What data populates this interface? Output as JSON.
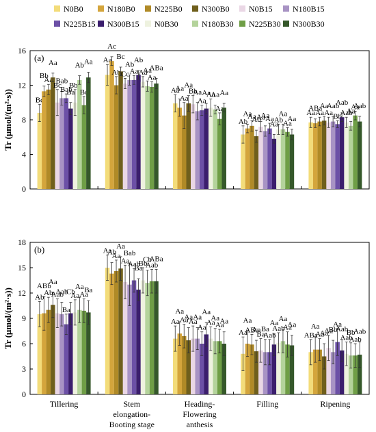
{
  "legend": {
    "placement": "top",
    "items": [
      {
        "label": "N0B0",
        "color": "#f3dc7a"
      },
      {
        "label": "N180B0",
        "color": "#d4a53c"
      },
      {
        "label": "N225B0",
        "color": "#b08a27"
      },
      {
        "label": "N300B0",
        "color": "#6f5f1c"
      },
      {
        "label": "N0B15",
        "color": "#ead7e5"
      },
      {
        "label": "N180B15",
        "color": "#a893c4"
      },
      {
        "label": "N225B15",
        "color": "#6c50a6"
      },
      {
        "label": "N300B15",
        "color": "#3b1e6d"
      },
      {
        "label": "N0B30",
        "color": "#eef2df"
      },
      {
        "label": "N180B30",
        "color": "#b4d39b"
      },
      {
        "label": "N225B30",
        "color": "#6f9e46"
      },
      {
        "label": "N300B30",
        "color": "#35582a"
      }
    ]
  },
  "stages": [
    "Tillering",
    "Stem\nelongation-\nBooting stage",
    "Heading-\nFlowering\nanthesis",
    "Filling",
    "Ripening"
  ],
  "chart_data": [
    {
      "type": "bar",
      "panel_label": "(a)",
      "ylabel": "Tr (μmol/(m²·s))",
      "ylim": [
        0,
        16
      ],
      "yticks": [
        0,
        4,
        8,
        12,
        16
      ],
      "categories": [
        "Tillering",
        "Stem elongation-Booting stage",
        "Heading-Flowering anthesis",
        "Filling",
        "Ripening"
      ],
      "series": [
        {
          "name": "N0B0",
          "values": [
            8.8,
            13.2,
            9.9,
            6.3,
            7.7
          ],
          "errors": [
            1.0,
            1.2,
            1.0,
            1.0,
            0.6
          ],
          "letters": [
            "Bc",
            "Aa",
            "Aa",
            "Ab",
            "Aa"
          ]
        },
        {
          "name": "N180B0",
          "values": [
            11.3,
            14.8,
            9.4,
            7.0,
            7.6
          ],
          "errors": [
            0.6,
            0.5,
            1.0,
            0.5,
            0.5
          ],
          "letters": [
            "Bb",
            "Ac",
            "Aa",
            "Aa",
            "ABa"
          ]
        },
        {
          "name": "N225B0",
          "values": [
            11.5,
            12.0,
            8.5,
            7.3,
            7.8
          ],
          "errors": [
            0.6,
            1.0,
            1.5,
            0.6,
            0.5
          ],
          "letters": [
            "Aa",
            "Ab",
            "Aa",
            "Aa",
            "Aa"
          ]
        },
        {
          "name": "N300B0",
          "values": [
            12.9,
            13.6,
            9.9,
            6.1,
            7.9
          ],
          "errors": [
            0.5,
            0.5,
            0.9,
            0.7,
            0.5
          ],
          "letters": [
            "Aa",
            "Bc",
            "Aa",
            "Ab",
            "Aa"
          ]
        },
        {
          "name": "N0B15",
          "values": [
            10.0,
            12.2,
            9.8,
            7.2,
            7.7
          ],
          "errors": [
            1.5,
            0.6,
            1.0,
            0.6,
            0.6
          ],
          "letters": [
            "Bc",
            "Cc",
            "Bb",
            "Aa",
            "Aa"
          ]
        },
        {
          "name": "N180B15",
          "values": [
            10.5,
            12.6,
            9.0,
            6.7,
            7.8
          ],
          "errors": [
            0.8,
            0.6,
            1.0,
            0.6,
            0.6
          ],
          "letters": [
            "Bab",
            "Ab",
            "Aa",
            "Aa",
            "Aab"
          ]
        },
        {
          "name": "N225B15",
          "values": [
            10.5,
            12.6,
            9.1,
            7.0,
            7.5
          ],
          "errors": [
            0.5,
            0.5,
            0.6,
            0.6,
            0.4
          ],
          "letters": [
            "Bab",
            "Aa",
            "Aa",
            "Aa",
            "Bb"
          ]
        },
        {
          "name": "N300B15",
          "values": [
            9.3,
            13.2,
            9.3,
            5.8,
            8.3
          ],
          "errors": [
            0.7,
            0.5,
            0.6,
            0.5,
            0.5
          ],
          "letters": [
            "Ba",
            "Ab",
            "Aa",
            "Aa",
            "Aab"
          ]
        },
        {
          "name": "N0B30",
          "values": [
            10.0,
            12.4,
            9.4,
            6.9,
            7.7
          ],
          "errors": [
            1.5,
            0.6,
            1.0,
            0.6,
            0.6
          ],
          "letters": [
            "Bbc",
            "Aa",
            "Aa",
            "Ab",
            "Aab"
          ]
        },
        {
          "name": "N180B30",
          "values": [
            12.6,
            11.9,
            9.2,
            6.9,
            7.3
          ],
          "errors": [
            0.5,
            0.6,
            0.5,
            0.6,
            0.5
          ],
          "letters": [
            "Ab",
            "Aa",
            "Aa",
            "Aa",
            "Aa"
          ]
        },
        {
          "name": "N225B30",
          "values": [
            9.7,
            11.8,
            8.1,
            6.6,
            8.5
          ],
          "errors": [
            1.0,
            0.6,
            0.7,
            0.5,
            0.5
          ],
          "letters": [
            "Bc",
            "Aa",
            "Aa",
            "Aa",
            "Aa"
          ]
        },
        {
          "name": "N300B30",
          "values": [
            12.9,
            12.2,
            9.4,
            6.3,
            7.8
          ],
          "errors": [
            0.6,
            0.6,
            0.5,
            0.6,
            0.6
          ],
          "letters": [
            "Aa",
            "ABa",
            "Aa",
            "Aa",
            "Aab"
          ]
        }
      ]
    },
    {
      "type": "bar",
      "panel_label": "(b)",
      "ylabel": "Tr (μmol/(m²·s))",
      "ylim": [
        0,
        18
      ],
      "yticks": [
        0,
        3,
        6,
        9,
        12,
        15,
        18
      ],
      "categories": [
        "Tillering",
        "Stem elongation-Booting stage",
        "Heading-Flowering anthesis",
        "Filling",
        "Ripening"
      ],
      "series": [
        {
          "name": "N0B0",
          "values": [
            9.5,
            15.0,
            6.6,
            4.8,
            5.0
          ],
          "errors": [
            1.5,
            1.5,
            1.5,
            2.0,
            1.5
          ],
          "letters": [
            "Ab",
            "Aa",
            "Aa",
            "Aa",
            "ABa"
          ]
        },
        {
          "name": "N180B0",
          "values": [
            9.6,
            14.3,
            7.2,
            6.0,
            5.3
          ],
          "errors": [
            2.0,
            1.3,
            1.4,
            1.5,
            1.5
          ],
          "letters": [
            "ABb",
            "Ab",
            "Aa",
            "Aa",
            "Aa"
          ]
        },
        {
          "name": "N225B0",
          "values": [
            10.0,
            14.6,
            6.9,
            5.9,
            5.3
          ],
          "errors": [
            1.5,
            1.3,
            1.4,
            1.2,
            1.3
          ],
          "letters": [
            "Ab",
            "Aa",
            "Aa",
            "ABa",
            "Aa"
          ]
        },
        {
          "name": "N300B0",
          "values": [
            10.6,
            14.9,
            6.4,
            5.1,
            4.5
          ],
          "errors": [
            1.5,
            1.4,
            1.5,
            1.3,
            1.5
          ],
          "letters": [
            "Aa",
            "Aa",
            "Aa",
            "Aa",
            "Aa"
          ]
        },
        {
          "name": "N0B15",
          "values": [
            9.6,
            13.3,
            6.6,
            5.2,
            5.5
          ],
          "errors": [
            1.7,
            2.0,
            1.5,
            1.4,
            1.5
          ],
          "letters": [
            "Aab",
            "Aa",
            "Aa",
            "Ba",
            "Aa"
          ]
        },
        {
          "name": "N180B15",
          "values": [
            9.5,
            13.0,
            6.6,
            5.0,
            5.0
          ],
          "errors": [
            1.4,
            2.5,
            1.3,
            1.5,
            1.4
          ],
          "letters": [
            "Aab",
            "Bab",
            "Aa",
            "Ba",
            "Bb"
          ]
        },
        {
          "name": "N225B15",
          "values": [
            8.3,
            13.5,
            6.0,
            5.0,
            6.2
          ],
          "errors": [
            1.2,
            1.4,
            1.4,
            1.5,
            1.6
          ],
          "letters": [
            "Ba",
            "Aab",
            "Aa",
            "Aab",
            "Aa"
          ]
        },
        {
          "name": "N300B15",
          "values": [
            9.6,
            12.4,
            7.1,
            5.9,
            5.2
          ],
          "errors": [
            1.3,
            1.3,
            1.4,
            1.3,
            1.3
          ],
          "letters": [
            "Cb",
            "Ba",
            "Aa",
            "Aa",
            "Aab"
          ]
        },
        {
          "name": "N0B30",
          "values": [
            9.7,
            13.5,
            6.6,
            6.1,
            4.8
          ],
          "errors": [
            1.5,
            1.5,
            1.4,
            1.2,
            1.4
          ],
          "letters": [
            "Aa",
            "Bb",
            "Aa",
            "Aab",
            "Aab"
          ]
        },
        {
          "name": "N180B30",
          "values": [
            10.0,
            13.2,
            6.3,
            6.3,
            4.6
          ],
          "errors": [
            1.5,
            1.5,
            1.5,
            1.4,
            1.5
          ],
          "letters": [
            "Aa",
            "Cb",
            "Aa",
            "Aa",
            "Bb"
          ]
        },
        {
          "name": "N225B30",
          "values": [
            9.9,
            13.4,
            6.3,
            5.9,
            4.6
          ],
          "errors": [
            1.4,
            1.4,
            1.4,
            1.5,
            1.4
          ],
          "letters": [
            "Aa",
            "Aab",
            "Aa",
            "Aa",
            "Aab"
          ]
        },
        {
          "name": "N300B30",
          "values": [
            9.7,
            13.4,
            6.0,
            5.8,
            4.7
          ],
          "errors": [
            1.4,
            1.4,
            1.4,
            1.2,
            1.5
          ],
          "letters": [
            "Ba",
            "ABa",
            "Aa",
            "Aa",
            "Aab"
          ]
        }
      ]
    }
  ]
}
